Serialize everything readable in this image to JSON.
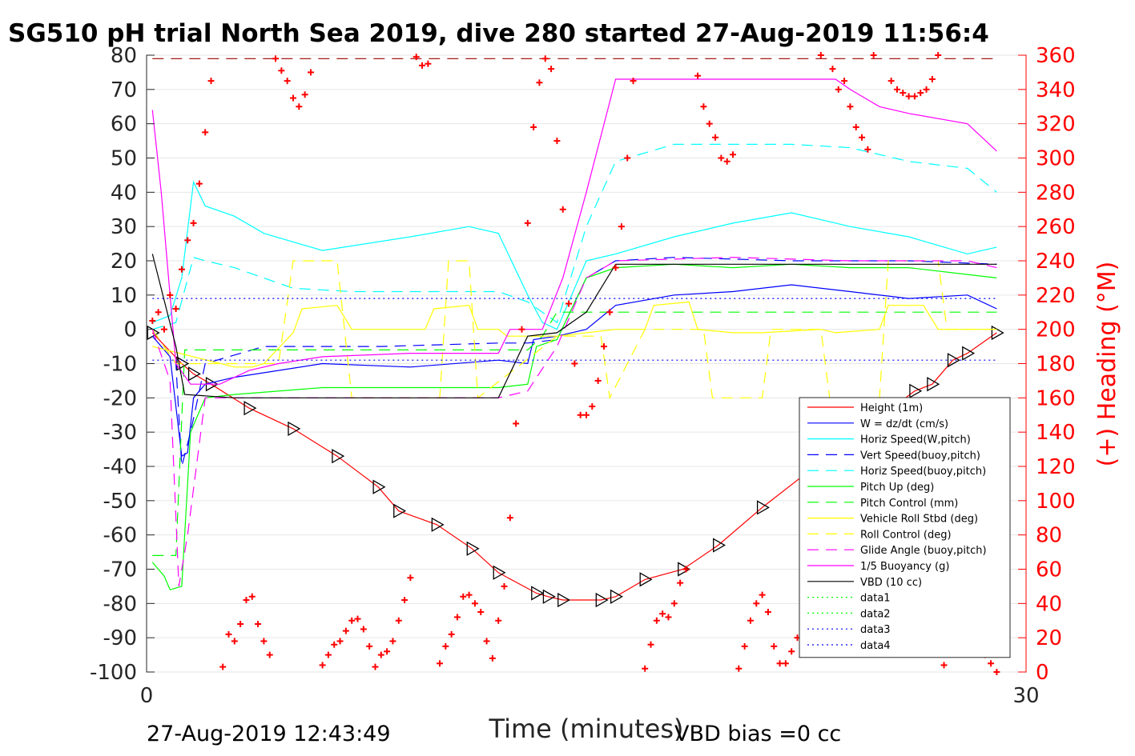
{
  "title": "SG510 pH trial North Sea 2019, dive 280 started 27-Aug-2019 11:56:4",
  "xlabel": "Time (minutes)",
  "ylabel_right": "(+) Heading (°M)",
  "footer_left": "27-Aug-2019 12:43:49",
  "footer_right": "VBD bias =0 cc",
  "chart_data": {
    "type": "line",
    "xlim": [
      0,
      30
    ],
    "ylim_left": [
      -100,
      80
    ],
    "ylim_right": [
      0,
      360
    ],
    "x_ticks": [
      0,
      30
    ],
    "y_ticks_left": [
      80,
      70,
      60,
      50,
      40,
      30,
      20,
      10,
      0,
      -10,
      -20,
      -30,
      -40,
      -50,
      -60,
      -70,
      -80,
      -90,
      -100
    ],
    "y_ticks_right": [
      360,
      340,
      320,
      300,
      280,
      260,
      240,
      220,
      200,
      180,
      160,
      140,
      120,
      100,
      80,
      60,
      40,
      20,
      0
    ],
    "grid": "horizontal",
    "legend_position": "bottom-right",
    "legend": [
      "Height (1m)",
      "W = dz/dt (cm/s)",
      "Horiz Speed(W,pitch)",
      "Vert Speed(buoy,pitch)",
      "Horiz Speed(buoy,pitch)",
      "Pitch Up (deg)",
      "Pitch Control (mm)",
      "Vehicle Roll Stbd (deg)",
      "Roll Control (deg)",
      "Glide Angle (buoy,pitch)",
      "1/5 Buoyancy (g)",
      "VBD (10 cc)",
      "data1",
      "data2",
      "data3",
      "data4"
    ],
    "series": [
      {
        "name": "Height (1m)",
        "color": "#ff0000",
        "style": "solid",
        "marker": "triangle",
        "x": [
          0.2,
          1.2,
          1.6,
          2.2,
          3.5,
          5.0,
          6.5,
          7.9,
          8.6,
          9.9,
          11.1,
          12.0,
          13.3,
          13.7,
          14.2,
          15.5,
          16.0,
          17.0,
          18.3,
          19.5,
          21.0,
          22.5,
          23.1,
          24.4,
          25.1,
          26.2,
          26.8,
          27.5,
          28.0,
          29.0
        ],
        "y": [
          -1,
          -10,
          -13,
          -16,
          -23,
          -29,
          -37,
          -46,
          -53,
          -57,
          -64,
          -71,
          -77,
          -78,
          -79,
          -79,
          -78,
          -73,
          -70,
          -63,
          -52,
          -42,
          -37,
          -29,
          -25,
          -18,
          -16,
          -9,
          -7,
          -1
        ]
      },
      {
        "name": "W = dz/dt (cm/s)",
        "color": "#0000ff",
        "style": "solid",
        "marker": "none",
        "x": [
          0.2,
          0.8,
          1.2,
          1.4,
          1.6,
          2.0,
          3.0,
          6.0,
          9.0,
          12.0,
          13.0,
          13.2,
          14.0,
          15.0,
          16.0,
          18.0,
          20.0,
          22.0,
          24.0,
          26.0,
          28.0,
          29.0
        ],
        "y": [
          -2,
          -8,
          -37,
          -36,
          -20,
          -16,
          -14,
          -10,
          -11,
          -9,
          -10,
          -3,
          -2,
          0,
          7,
          10,
          11,
          13,
          11,
          9,
          10,
          6
        ]
      },
      {
        "name": "Horiz Speed(W,pitch)",
        "color": "#00ffff",
        "style": "solid",
        "marker": "none",
        "x": [
          0.2,
          0.8,
          1.2,
          1.6,
          2.0,
          3.0,
          4.0,
          6.0,
          9.0,
          11.0,
          12.0,
          13.0,
          13.5,
          14.0,
          15.0,
          16.0,
          18.0,
          20.0,
          22.0,
          24.0,
          26.0,
          28.0,
          29.0
        ],
        "y": [
          2,
          4,
          15,
          43,
          36,
          33,
          28,
          23,
          27,
          30,
          28,
          10,
          2,
          0,
          20,
          22,
          27,
          31,
          34,
          30,
          27,
          22,
          24
        ]
      },
      {
        "name": "Vert Speed(buoy,pitch)",
        "color": "#0000ff",
        "style": "dashed",
        "marker": "none",
        "x": [
          0.2,
          1.0,
          1.2,
          1.5,
          2.0,
          4.0,
          8.0,
          12.0,
          13.0,
          14.0,
          15.0,
          16.0,
          18.0,
          22.0,
          26.0,
          29.0
        ],
        "y": [
          0,
          -10,
          -40,
          -30,
          -10,
          -5,
          -5,
          -4,
          -4,
          -3,
          15,
          20,
          21,
          20,
          20,
          19
        ]
      },
      {
        "name": "Horiz Speed(buoy,pitch)",
        "color": "#00ffff",
        "style": "dashed",
        "marker": "none",
        "x": [
          0.2,
          1.0,
          1.6,
          2.0,
          3.0,
          5.0,
          7.0,
          9.0,
          12.0,
          13.0,
          14.0,
          15.0,
          16.0,
          18.0,
          20.0,
          22.0,
          24.0,
          26.0,
          28.0,
          29.0
        ],
        "y": [
          0,
          2,
          21,
          20,
          18,
          12,
          11,
          11,
          11,
          8,
          2,
          30,
          49,
          54,
          54,
          54,
          53,
          49,
          47,
          40
        ]
      },
      {
        "name": "Pitch Up (deg)",
        "color": "#00ff00",
        "style": "solid",
        "marker": "none",
        "x": [
          0.2,
          0.6,
          0.8,
          1.2,
          1.5,
          2.0,
          3.0,
          6.0,
          9.0,
          12.0,
          13.0,
          13.3,
          14.0,
          15.0,
          16.0,
          18.0,
          20.0,
          22.0,
          24.0,
          26.0,
          28.0,
          29.0
        ],
        "y": [
          -68,
          -72,
          -76,
          -75,
          -30,
          -20,
          -19,
          -17,
          -17,
          -17,
          -16,
          -5,
          -3,
          15,
          18,
          19,
          18,
          19,
          18,
          18,
          16,
          15
        ]
      },
      {
        "name": "Pitch Control (mm)",
        "color": "#00ff00",
        "style": "dashed",
        "marker": "none",
        "x": [
          0.2,
          1.0,
          1.3,
          1.5,
          13.0,
          13.5,
          14.0,
          29.0
        ],
        "y": [
          -66,
          -66,
          -6,
          -6,
          -6,
          -2,
          5,
          5
        ]
      },
      {
        "name": "Vehicle Roll Stbd (deg)",
        "color": "#ffff00",
        "style": "solid",
        "marker": "none",
        "x": [
          0.2,
          3.0,
          3.6,
          4.0,
          5.0,
          5.3,
          6.5,
          7.0,
          9.5,
          9.8,
          11.0,
          11.3,
          12.0,
          12.3,
          14.0,
          16.0,
          17.0,
          17.3,
          18.5,
          18.8,
          20.0,
          21.0,
          23.0,
          23.5,
          25.0,
          25.3,
          26.5,
          27.0,
          29.0
        ],
        "y": [
          -5,
          -11,
          -11,
          -10,
          -1,
          6,
          7,
          0,
          0,
          6,
          7,
          0,
          0,
          -2,
          -2,
          0,
          0,
          7,
          8,
          0,
          -1,
          -1,
          0,
          -1,
          0,
          7,
          7,
          0,
          0
        ]
      },
      {
        "name": "Roll Control (deg)",
        "color": "#ffff00",
        "style": "dashed",
        "marker": "none",
        "x": [
          0.2,
          1.0,
          4.5,
          5.0,
          6.5,
          7.0,
          10.0,
          10.3,
          11.0,
          11.3,
          14.0,
          15.5,
          15.8,
          17.0,
          19.0,
          19.3,
          21.0,
          21.3,
          23.0,
          23.3,
          25.0,
          25.3,
          27.0,
          27.3,
          29.0
        ],
        "y": [
          0,
          -10,
          -10,
          20,
          20,
          -20,
          -20,
          20,
          20,
          -20,
          -2,
          -2,
          -20,
          0,
          0,
          -20,
          -20,
          0,
          0,
          -20,
          -20,
          20,
          20,
          0,
          0
        ]
      },
      {
        "name": "Glide Angle (buoy,pitch)",
        "color": "#ff00ff",
        "style": "dashed",
        "marker": "none",
        "x": [
          0.2,
          0.8,
          1.1,
          1.4,
          2.0,
          4.0,
          8.0,
          12.0,
          13.0,
          14.0,
          15.0,
          16.0,
          20.0,
          24.0,
          28.0,
          29.0
        ],
        "y": [
          0,
          -15,
          -75,
          -60,
          -20,
          -20,
          -20,
          -20,
          -18,
          -5,
          15,
          20,
          21,
          20,
          20,
          18
        ]
      },
      {
        "name": "1/5 Buoyancy (g)",
        "color": "#ff00ff",
        "style": "solid",
        "marker": "none",
        "x": [
          0.2,
          0.5,
          1.0,
          1.5,
          2.5,
          3.5,
          4.5,
          6.0,
          9.0,
          12.0,
          12.4,
          13.5,
          14.2,
          15.0,
          16.0,
          18.0,
          20.0,
          22.0,
          23.5,
          24.0,
          25.0,
          26.0,
          28.0,
          29.0
        ],
        "y": [
          64,
          40,
          -10,
          -16,
          -16,
          -12,
          -10,
          -8,
          -7,
          -7,
          0,
          0,
          15,
          40,
          73,
          73,
          73,
          73,
          73,
          70,
          65,
          63,
          60,
          52
        ]
      },
      {
        "name": "VBD (10 cc)",
        "color": "#000000",
        "style": "solid",
        "marker": "none",
        "x": [
          0.2,
          1.0,
          1.3,
          3.0,
          6.0,
          9.0,
          12.0,
          13.0,
          14.0,
          15.0,
          16.0,
          20.0,
          24.0,
          28.0,
          29.0
        ],
        "y": [
          22,
          -5,
          -19,
          -20,
          -20,
          -20,
          -20,
          -2,
          -1,
          5,
          19,
          19,
          19,
          19,
          19
        ]
      },
      {
        "name": "data1",
        "color": "#00ff00",
        "style": "dotted",
        "marker": "none",
        "x": [],
        "y": []
      },
      {
        "name": "data2",
        "color": "#00ff00",
        "style": "dotted",
        "marker": "none",
        "x": [],
        "y": []
      },
      {
        "name": "data3",
        "color": "#0000ff",
        "style": "dotted",
        "marker": "none",
        "x": [
          0.2,
          29.0
        ],
        "y": [
          9,
          9
        ]
      },
      {
        "name": "data4",
        "color": "#0000ff",
        "style": "dotted",
        "marker": "none",
        "x": [
          0.2,
          29.0
        ],
        "y": [
          -9,
          -9
        ]
      },
      {
        "name": "Heading ref",
        "color": "#990000",
        "style": "dashed",
        "marker": "none",
        "axis": "right",
        "x": [
          0.2,
          29.0
        ],
        "y": [
          358,
          358
        ]
      },
      {
        "name": "Heading",
        "color": "#ff0000",
        "style": "none",
        "marker": "plus",
        "axis": "right",
        "x": [
          0.2,
          0.4,
          0.6,
          0.8,
          1.0,
          1.2,
          1.4,
          1.6,
          1.8,
          2.0,
          2.2,
          2.4,
          2.6,
          2.8,
          3.0,
          3.2,
          3.4,
          3.6,
          3.8,
          4.0,
          4.2,
          4.4,
          4.6,
          4.8,
          5.0,
          5.2,
          5.4,
          5.6,
          5.8,
          6.0,
          6.2,
          6.4,
          6.6,
          6.8,
          7.0,
          7.2,
          7.4,
          7.6,
          7.8,
          8.0,
          8.2,
          8.4,
          8.6,
          8.8,
          9.0,
          9.2,
          9.4,
          9.6,
          9.8,
          10.0,
          10.2,
          10.4,
          10.6,
          10.8,
          11.0,
          11.2,
          11.4,
          11.6,
          11.8,
          12.0,
          12.2,
          12.4,
          12.6,
          12.8,
          13.0,
          13.2,
          13.4,
          13.6,
          13.8,
          14.0,
          14.2,
          14.4,
          14.6,
          14.8,
          15.0,
          15.2,
          15.4,
          15.6,
          15.8,
          16.0,
          16.2,
          16.4,
          16.6,
          16.8,
          17.0,
          17.2,
          17.4,
          17.6,
          17.8,
          18.0,
          18.2,
          18.4,
          18.6,
          18.8,
          19.0,
          19.2,
          19.4,
          19.6,
          19.8,
          20.0,
          20.2,
          20.4,
          20.6,
          20.8,
          21.0,
          21.2,
          21.4,
          21.6,
          21.8,
          22.0,
          22.2,
          22.4,
          22.6,
          22.8,
          23.0,
          23.2,
          23.4,
          23.6,
          23.8,
          24.0,
          24.2,
          24.4,
          24.6,
          24.8,
          25.0,
          25.2,
          25.4,
          25.6,
          25.8,
          26.0,
          26.2,
          26.4,
          26.6,
          26.8,
          27.0,
          27.2,
          27.4,
          27.6,
          27.8,
          28.0,
          28.2,
          28.4,
          28.6,
          28.8,
          29.0
        ],
        "y": [
          205,
          210,
          200,
          220,
          212,
          235,
          252,
          262,
          285,
          315,
          345,
          380,
          3,
          22,
          18,
          28,
          42,
          44,
          28,
          18,
          10,
          358,
          351,
          345,
          335,
          330,
          337,
          350,
          365,
          4,
          10,
          16,
          18,
          24,
          30,
          31,
          25,
          15,
          3,
          10,
          12,
          18,
          30,
          42,
          55,
          359,
          354,
          355,
          362,
          5,
          15,
          22,
          32,
          44,
          45,
          40,
          35,
          18,
          8,
          30,
          50,
          90,
          145,
          200,
          262,
          318,
          344,
          358,
          352,
          310,
          270,
          215,
          180,
          150,
          150,
          155,
          170,
          190,
          210,
          236,
          260,
          300,
          345,
          380,
          2,
          16,
          30,
          34,
          32,
          40,
          52,
          60,
          365,
          348,
          330,
          320,
          312,
          300,
          298,
          302,
          2,
          15,
          30,
          40,
          45,
          35,
          15,
          5,
          5,
          12,
          20,
          30,
          38,
          45,
          360,
          366,
          352,
          340,
          345,
          330,
          318,
          312,
          305,
          360,
          380,
          362,
          345,
          340,
          338,
          336,
          336,
          338,
          340,
          346,
          360,
          4,
          18,
          26,
          42,
          45,
          30,
          15,
          10,
          5,
          0
        ]
      }
    ]
  }
}
